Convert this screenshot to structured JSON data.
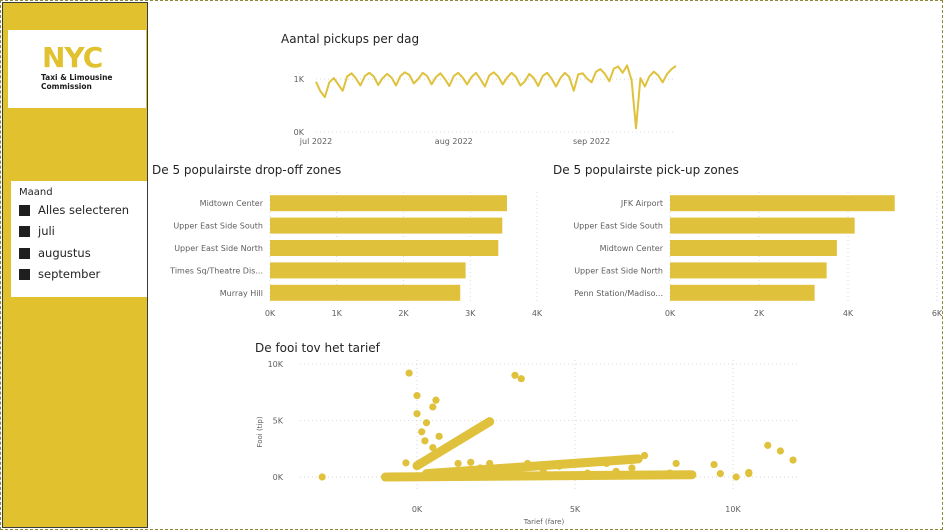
{
  "logo": {
    "mark": "NYC",
    "line1": "Taxi & Limousine",
    "line2": "Commission"
  },
  "slicer": {
    "title": "Maand",
    "items": [
      "Alles selecteren",
      "juli",
      "augustus",
      "september"
    ]
  },
  "colors": {
    "accent": "#e2c12f",
    "mark": "#dfc13c"
  },
  "charts": {
    "pickups": {
      "title": "Aantal pickups per dag"
    },
    "dropoff": {
      "title": "De 5 populairste drop-off zones"
    },
    "pickup": {
      "title": "De 5 populairste pick-up zones"
    },
    "scatter": {
      "title": "De fooi tov het tarief"
    }
  },
  "chart_data": [
    {
      "id": "pickups",
      "type": "line",
      "title": "Aantal pickups per dag",
      "x_tick_labels": [
        "jul 2022",
        "aug 2022",
        "sep 2022"
      ],
      "y_tick_labels": [
        "0K",
        "1K"
      ],
      "ylim": [
        0,
        1400
      ],
      "x_start": "2022-07-01",
      "values": [
        950,
        770,
        660,
        940,
        1020,
        900,
        780,
        1050,
        1110,
        1010,
        880,
        1060,
        1120,
        1050,
        890,
        1020,
        1100,
        1030,
        880,
        1060,
        1130,
        1080,
        920,
        1000,
        1120,
        1060,
        900,
        1040,
        1110,
        1000,
        870,
        1060,
        1120,
        1030,
        900,
        1040,
        1120,
        1000,
        860,
        1070,
        1130,
        1050,
        900,
        1030,
        1120,
        1040,
        880,
        960,
        1100,
        1020,
        870,
        1060,
        1120,
        1010,
        860,
        1020,
        1120,
        1040,
        780,
        1090,
        1110,
        1010,
        940,
        1140,
        1190,
        1100,
        960,
        1200,
        1240,
        1120,
        1260,
        980,
        70,
        1020,
        860,
        1050,
        1140,
        1070,
        940,
        1100,
        1190,
        1250
      ]
    },
    {
      "id": "dropoff",
      "type": "bar",
      "orientation": "horizontal",
      "title": "De 5 populairste drop-off zones",
      "categories": [
        "Midtown Center",
        "Upper East Side South",
        "Upper East Side North",
        "Times Sq/Theatre Dis...",
        "Murray Hill"
      ],
      "values": [
        3550,
        3480,
        3420,
        2930,
        2850
      ],
      "x_tick_labels": [
        "0K",
        "1K",
        "2K",
        "3K",
        "4K"
      ],
      "xlim": [
        0,
        4000
      ]
    },
    {
      "id": "pickup",
      "type": "bar",
      "orientation": "horizontal",
      "title": "De 5 populairste pick-up zones",
      "categories": [
        "JFK Airport",
        "Upper East Side South",
        "Midtown Center",
        "Upper East Side North",
        "Penn Station/Madiso..."
      ],
      "values": [
        5050,
        4150,
        3750,
        3520,
        3250
      ],
      "x_tick_labels": [
        "0K",
        "2K",
        "4K",
        "6K"
      ],
      "xlim": [
        0,
        6000
      ]
    },
    {
      "id": "scatter",
      "type": "scatter",
      "title": "De fooi tov het tarief",
      "xlabel": "Tarief (fare)",
      "ylabel": "Fooi (tip)",
      "x_tick_labels": [
        "0K",
        "5K",
        "10K"
      ],
      "y_tick_labels": [
        "10K",
        "5K",
        "0K"
      ],
      "xlim": [
        -3300,
        11900
      ],
      "ylim": [
        -1000,
        10000
      ],
      "points": [
        [
          -3000,
          0
        ],
        [
          -250,
          9200
        ],
        [
          0,
          7200
        ],
        [
          500,
          6200
        ],
        [
          600,
          6800
        ],
        [
          0,
          5600
        ],
        [
          300,
          4800
        ],
        [
          150,
          4000
        ],
        [
          700,
          3600
        ],
        [
          250,
          3200
        ],
        [
          500,
          2600
        ],
        [
          1300,
          1200
        ],
        [
          1700,
          1300
        ],
        [
          2000,
          800
        ],
        [
          2300,
          1200
        ],
        [
          3100,
          9000
        ],
        [
          3300,
          8700
        ],
        [
          3500,
          1200
        ],
        [
          4500,
          950
        ],
        [
          5600,
          1400
        ],
        [
          6000,
          1200
        ],
        [
          5400,
          350
        ],
        [
          6800,
          800
        ],
        [
          7200,
          1900
        ],
        [
          8200,
          1200
        ],
        [
          8000,
          350
        ],
        [
          8700,
          200
        ],
        [
          9400,
          1100
        ],
        [
          9600,
          300
        ],
        [
          10100,
          0
        ],
        [
          10500,
          300
        ],
        [
          10500,
          400
        ],
        [
          11100,
          2800
        ],
        [
          11500,
          2300
        ],
        [
          11900,
          1500
        ],
        [
          -350,
          1250
        ],
        [
          1400,
          150
        ],
        [
          2600,
          200
        ],
        [
          4000,
          450
        ],
        [
          6300,
          500
        ],
        [
          7400,
          250
        ]
      ],
      "bands": [
        {
          "from": [
            0,
            1000
          ],
          "to": [
            2300,
            4900
          ]
        },
        {
          "from": [
            300,
            300
          ],
          "to": [
            7000,
            1600
          ]
        },
        {
          "from": [
            -1000,
            0
          ],
          "to": [
            8700,
            200
          ]
        }
      ]
    }
  ]
}
